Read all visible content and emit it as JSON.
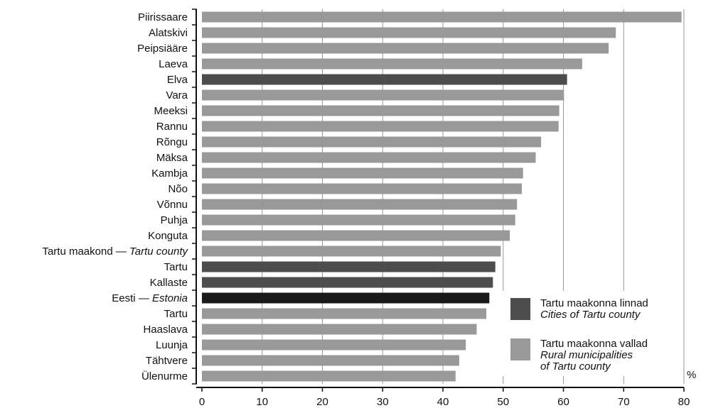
{
  "chart_data": {
    "type": "bar",
    "orientation": "horizontal",
    "categories": [
      "Piirissaare",
      "Alatskivi",
      "Peipsiääre",
      "Laeva",
      "Elva",
      "Vara",
      "Meeksi",
      "Rannu",
      "Rõngu",
      "Mäksa",
      "Kambja",
      "Nõo",
      "Võnnu",
      "Puhja",
      "Konguta",
      "Tartu maakond — Tartu county",
      "Tartu",
      "Kallaste",
      "Eesti — Estonia",
      "Tartu",
      "Haaslava",
      "Luunja",
      "Tähtvere",
      "Ülenurme"
    ],
    "labels": [
      {
        "main": "Piirissaare",
        "italic": ""
      },
      {
        "main": "Alatskivi",
        "italic": ""
      },
      {
        "main": "Peipsiääre",
        "italic": ""
      },
      {
        "main": "Laeva",
        "italic": ""
      },
      {
        "main": "Elva",
        "italic": ""
      },
      {
        "main": "Vara",
        "italic": ""
      },
      {
        "main": "Meeksi",
        "italic": ""
      },
      {
        "main": "Rannu",
        "italic": ""
      },
      {
        "main": "Rõngu",
        "italic": ""
      },
      {
        "main": "Mäksa",
        "italic": ""
      },
      {
        "main": "Kambja",
        "italic": ""
      },
      {
        "main": "Nõo",
        "italic": ""
      },
      {
        "main": "Võnnu",
        "italic": ""
      },
      {
        "main": "Puhja",
        "italic": ""
      },
      {
        "main": "Konguta",
        "italic": ""
      },
      {
        "main": "Tartu maakond — ",
        "italic": "Tartu county"
      },
      {
        "main": "Tartu",
        "italic": ""
      },
      {
        "main": "Kallaste",
        "italic": ""
      },
      {
        "main": "Eesti — ",
        "italic": "Estonia"
      },
      {
        "main": "Tartu",
        "italic": ""
      },
      {
        "main": "Haaslava",
        "italic": ""
      },
      {
        "main": "Luunja",
        "italic": ""
      },
      {
        "main": "Tähtvere",
        "italic": ""
      },
      {
        "main": "Ülenurme",
        "italic": ""
      }
    ],
    "values": [
      79.6,
      68.7,
      67.5,
      63.1,
      60.6,
      60.1,
      59.3,
      59.2,
      56.3,
      55.4,
      53.3,
      53.1,
      52.3,
      52.0,
      51.1,
      49.6,
      48.7,
      48.3,
      47.7,
      47.2,
      45.6,
      43.8,
      42.7,
      42.1
    ],
    "groups": [
      "rural",
      "rural",
      "rural",
      "rural",
      "city",
      "rural",
      "rural",
      "rural",
      "rural",
      "rural",
      "rural",
      "rural",
      "rural",
      "rural",
      "rural",
      "county",
      "city",
      "city",
      "country",
      "rural",
      "rural",
      "rural",
      "rural",
      "rural"
    ],
    "colors": {
      "rural": "#999999",
      "city": "#4d4d4d",
      "county": "#999999",
      "country": "#1a1a1a",
      "grid": "#999999",
      "axis": "#111111"
    },
    "xlim": [
      0,
      80
    ],
    "xticks": [
      0,
      10,
      20,
      30,
      40,
      50,
      60,
      70,
      80
    ],
    "unit_label": "%",
    "grid": true,
    "legend": {
      "placement": "bottom-right",
      "items": [
        {
          "group": "city",
          "line1": "Tartu maakonna linnad",
          "line2": "Cities of Tartu county",
          "line3": ""
        },
        {
          "group": "rural",
          "line1": "Tartu maakonna vallad",
          "line2": "Rural municipalities",
          "line3": "of Tartu county"
        }
      ]
    }
  }
}
